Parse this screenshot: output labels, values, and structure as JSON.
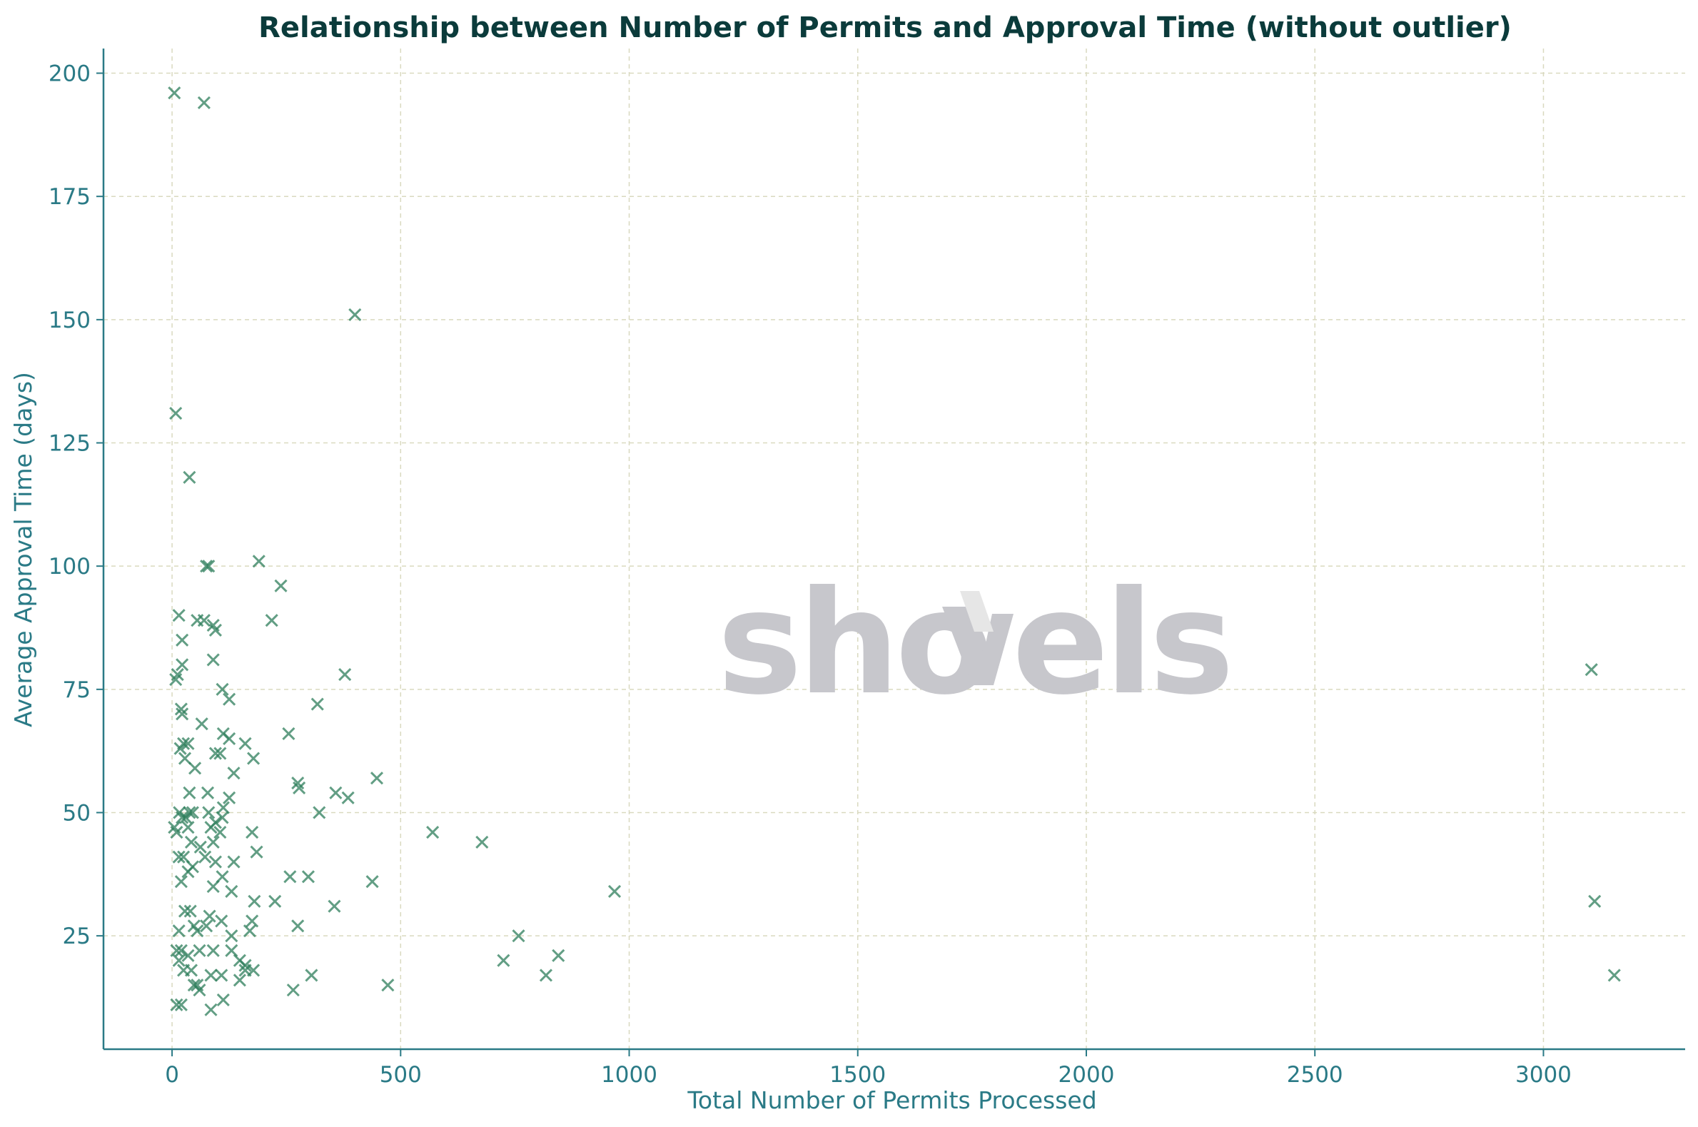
{
  "colors": {
    "title": "#0b3b3b",
    "axis": "#2a7a86",
    "grid": "#d9d9bf",
    "marker": "#2e7d5b",
    "watermark": "#c7c7cc",
    "watermark_accent": "#e6e6e6"
  },
  "watermark": {
    "text_left": "sho",
    "text_right": "els",
    "name": "shovels"
  },
  "chart_data": {
    "type": "scatter",
    "title": "Relationship between Number of Permits and Approval Time (without outlier)",
    "xlabel": "Total Number of Permits Processed",
    "ylabel": "Average Approval Time (days)",
    "xlim": [
      -150,
      3310
    ],
    "ylim": [
      2,
      205
    ],
    "xticks": [
      0,
      500,
      1000,
      1500,
      2000,
      2500,
      3000
    ],
    "yticks": [
      25,
      50,
      75,
      100,
      125,
      150,
      175,
      200
    ],
    "grid": true,
    "marker": "x",
    "points": [
      [
        5,
        196
      ],
      [
        70,
        194
      ],
      [
        400,
        151
      ],
      [
        8,
        131
      ],
      [
        38,
        118
      ],
      [
        75,
        100
      ],
      [
        80,
        100
      ],
      [
        190,
        101
      ],
      [
        238,
        96
      ],
      [
        218,
        89
      ],
      [
        15,
        90
      ],
      [
        55,
        89
      ],
      [
        70,
        89
      ],
      [
        90,
        88
      ],
      [
        95,
        87
      ],
      [
        22,
        85
      ],
      [
        90,
        81
      ],
      [
        22,
        80
      ],
      [
        8,
        77
      ],
      [
        12,
        78
      ],
      [
        110,
        75
      ],
      [
        125,
        73
      ],
      [
        378,
        78
      ],
      [
        318,
        72
      ],
      [
        20,
        71
      ],
      [
        22,
        70
      ],
      [
        65,
        68
      ],
      [
        255,
        66
      ],
      [
        112,
        66
      ],
      [
        125,
        65
      ],
      [
        18,
        63
      ],
      [
        25,
        64
      ],
      [
        35,
        64
      ],
      [
        95,
        62
      ],
      [
        105,
        62
      ],
      [
        160,
        64
      ],
      [
        178,
        61
      ],
      [
        28,
        61
      ],
      [
        50,
        59
      ],
      [
        135,
        58
      ],
      [
        448,
        57
      ],
      [
        275,
        56
      ],
      [
        278,
        55
      ],
      [
        358,
        54
      ],
      [
        385,
        53
      ],
      [
        38,
        54
      ],
      [
        78,
        54
      ],
      [
        125,
        53
      ],
      [
        322,
        50
      ],
      [
        112,
        51
      ],
      [
        16,
        50
      ],
      [
        22,
        49
      ],
      [
        30,
        49
      ],
      [
        38,
        50
      ],
      [
        45,
        50
      ],
      [
        80,
        50
      ],
      [
        95,
        48
      ],
      [
        110,
        49
      ],
      [
        5,
        47
      ],
      [
        10,
        46
      ],
      [
        35,
        47
      ],
      [
        85,
        47
      ],
      [
        105,
        46
      ],
      [
        175,
        46
      ],
      [
        570,
        46
      ],
      [
        678,
        44
      ],
      [
        42,
        44
      ],
      [
        90,
        44
      ],
      [
        62,
        43
      ],
      [
        185,
        42
      ],
      [
        15,
        41
      ],
      [
        25,
        41
      ],
      [
        72,
        41
      ],
      [
        95,
        40
      ],
      [
        135,
        40
      ],
      [
        35,
        38
      ],
      [
        45,
        39
      ],
      [
        110,
        37
      ],
      [
        298,
        37
      ],
      [
        438,
        36
      ],
      [
        258,
        37
      ],
      [
        20,
        36
      ],
      [
        90,
        35
      ],
      [
        130,
        34
      ],
      [
        968,
        34
      ],
      [
        180,
        32
      ],
      [
        225,
        32
      ],
      [
        355,
        31
      ],
      [
        28,
        30
      ],
      [
        40,
        30
      ],
      [
        82,
        29
      ],
      [
        108,
        28
      ],
      [
        175,
        28
      ],
      [
        170,
        26
      ],
      [
        275,
        27
      ],
      [
        15,
        26
      ],
      [
        55,
        26
      ],
      [
        48,
        27
      ],
      [
        75,
        27
      ],
      [
        130,
        25
      ],
      [
        758,
        25
      ],
      [
        10,
        22
      ],
      [
        20,
        22
      ],
      [
        35,
        21
      ],
      [
        60,
        22
      ],
      [
        90,
        22
      ],
      [
        130,
        22
      ],
      [
        148,
        20
      ],
      [
        15,
        20
      ],
      [
        725,
        20
      ],
      [
        845,
        21
      ],
      [
        160,
        18
      ],
      [
        178,
        18
      ],
      [
        305,
        17
      ],
      [
        818,
        17
      ],
      [
        3155,
        17
      ],
      [
        25,
        18
      ],
      [
        42,
        18
      ],
      [
        85,
        17
      ],
      [
        108,
        17
      ],
      [
        160,
        19
      ],
      [
        55,
        15
      ],
      [
        48,
        15
      ],
      [
        148,
        16
      ],
      [
        472,
        15
      ],
      [
        265,
        14
      ],
      [
        60,
        14
      ],
      [
        112,
        12
      ],
      [
        10,
        11
      ],
      [
        20,
        11
      ],
      [
        85,
        10
      ],
      [
        3105,
        79
      ],
      [
        3112,
        32
      ]
    ]
  }
}
